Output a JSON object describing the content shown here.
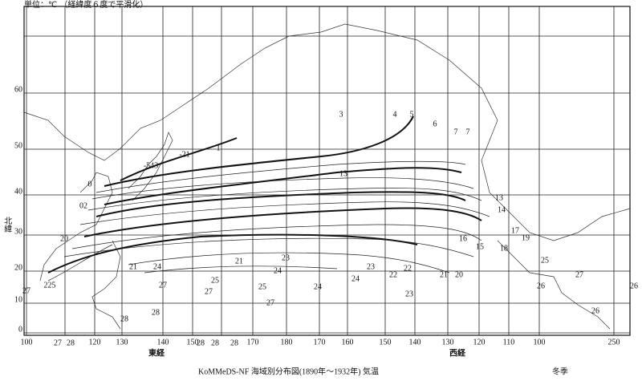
{
  "unit_note": "単位：℃ （経緯度６度で平滑化）",
  "axis_labels": {
    "north": "北緯",
    "east": "東経",
    "west": "西経"
  },
  "caption": "KoMMeDS-NF 海域別分布図(1890年～1932年) 気温",
  "season": "冬季",
  "latitude_labels": [
    0,
    10,
    20,
    30,
    40,
    50,
    60
  ],
  "longitude_labels": [
    100,
    120,
    130,
    140,
    150,
    170,
    180,
    170,
    160,
    150,
    140,
    130,
    120,
    110,
    100,
    250
  ],
  "contour_labels": [
    "1",
    "3",
    "4",
    "5",
    "6",
    "7",
    "7",
    "-21",
    "-543",
    "0",
    "02",
    "13",
    "13",
    "14",
    "16",
    "15",
    "17",
    "19",
    "18",
    "21",
    "24",
    "21",
    "23",
    "24",
    "23",
    "22",
    "22",
    "21",
    "20",
    "23",
    "27",
    "25",
    "27",
    "25",
    "24",
    "24",
    "27",
    "28",
    "28",
    "26",
    "26",
    "26",
    "27",
    "25",
    "20",
    "225",
    "27",
    "27",
    "28",
    "28",
    "28",
    "28"
  ]
}
